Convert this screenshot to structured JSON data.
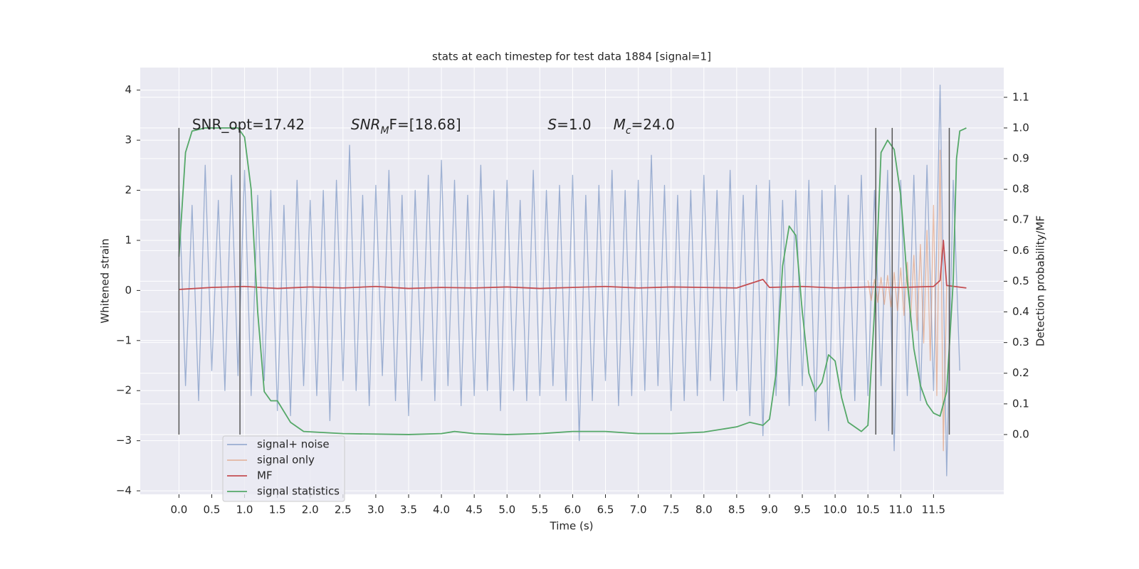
{
  "chart_data": {
    "type": "line",
    "title": "stats at each timestep for test data 1884 [signal=1]",
    "x_label": "Time (s)",
    "y_label": "Whitened strain",
    "y2_label": "Detection probability/MF",
    "xlim": [
      -0.59,
      12.57
    ],
    "ylim": [
      -4.07,
      4.45
    ],
    "y2lim": [
      -0.195,
      1.197
    ],
    "xticks": [
      {
        "value": 0,
        "label": "0.0"
      },
      {
        "value": 0.5,
        "label": "0.5"
      },
      {
        "value": 1,
        "label": "1.0"
      },
      {
        "value": 1.5,
        "label": "1.5"
      },
      {
        "value": 2,
        "label": "2.0"
      },
      {
        "value": 2.5,
        "label": "2.5"
      },
      {
        "value": 3,
        "label": "3.0"
      },
      {
        "value": 3.5,
        "label": "3.5"
      },
      {
        "value": 4,
        "label": "4.0"
      },
      {
        "value": 4.5,
        "label": "4.5"
      },
      {
        "value": 5,
        "label": "5.0"
      },
      {
        "value": 5.5,
        "label": "5.5"
      },
      {
        "value": 6,
        "label": "6.0"
      },
      {
        "value": 6.5,
        "label": "6.5"
      },
      {
        "value": 7,
        "label": "7.0"
      },
      {
        "value": 7.5,
        "label": "7.5"
      },
      {
        "value": 8,
        "label": "8.0"
      },
      {
        "value": 8.5,
        "label": "8.5"
      },
      {
        "value": 9,
        "label": "9.0"
      },
      {
        "value": 9.5,
        "label": "9.5"
      },
      {
        "value": 10,
        "label": "10.0"
      },
      {
        "value": 10.5,
        "label": "10.5"
      },
      {
        "value": 11,
        "label": "11.0"
      },
      {
        "value": 11.5,
        "label": "11.5"
      }
    ],
    "yticks": [
      {
        "value": -4,
        "label": "−4"
      },
      {
        "value": -3,
        "label": "−3"
      },
      {
        "value": -2,
        "label": "−2"
      },
      {
        "value": -1,
        "label": "−1"
      },
      0,
      1,
      2,
      3,
      4
    ],
    "y2ticks": [
      {
        "value": 0,
        "label": "0.0"
      },
      {
        "value": 0.1,
        "label": "0.1"
      },
      {
        "value": 0.2,
        "label": "0.2"
      },
      {
        "value": 0.3,
        "label": "0.3"
      },
      {
        "value": 0.4,
        "label": "0.4"
      },
      {
        "value": 0.5,
        "label": "0.5"
      },
      {
        "value": 0.6,
        "label": "0.6"
      },
      {
        "value": 0.7,
        "label": "0.7"
      },
      {
        "value": 0.8,
        "label": "0.8"
      },
      {
        "value": 0.9,
        "label": "0.9"
      },
      {
        "value": 1.0,
        "label": "1.0"
      },
      {
        "value": 1.1,
        "label": "1.1"
      }
    ],
    "grid": true,
    "legend": "lower left",
    "vlines": [
      0,
      0.93,
      10.62,
      10.87,
      11.74
    ],
    "vline_color": "#555555",
    "annotations": [
      {
        "x": 0.2,
        "y": 3.3,
        "parts": [
          {
            "text": "SNR_opt=17.42"
          }
        ]
      },
      {
        "x": 2.62,
        "y": 3.3,
        "parts": [
          {
            "text": "SNR",
            "italic": true
          },
          {
            "text": "M",
            "italic": true,
            "sub": true
          },
          {
            "text": "F=[18.68]"
          }
        ]
      },
      {
        "x": 5.62,
        "y": 3.3,
        "parts": [
          {
            "text": "S",
            "italic": true
          },
          {
            "text": "=1.0"
          }
        ]
      },
      {
        "x": 6.62,
        "y": 3.3,
        "parts": [
          {
            "text": "M",
            "italic": true
          },
          {
            "text": "c",
            "italic": true,
            "sub": true
          },
          {
            "text": "=24.0"
          }
        ]
      }
    ],
    "series": [
      {
        "name": "signal+ noise",
        "color": "#4c72b0",
        "opacity": 0.5,
        "x": [
          0.0,
          0.1,
          0.2,
          0.3,
          0.4,
          0.5,
          0.6,
          0.7,
          0.8,
          0.9,
          1.0,
          1.1,
          1.2,
          1.3,
          1.4,
          1.5,
          1.6,
          1.7,
          1.8,
          1.9,
          2.0,
          2.1,
          2.2,
          2.3,
          2.4,
          2.5,
          2.6,
          2.7,
          2.8,
          2.9,
          3.0,
          3.1,
          3.2,
          3.3,
          3.4,
          3.5,
          3.6,
          3.7,
          3.8,
          3.9,
          4.0,
          4.1,
          4.2,
          4.3,
          4.4,
          4.5,
          4.6,
          4.7,
          4.8,
          4.9,
          5.0,
          5.1,
          5.2,
          5.3,
          5.4,
          5.5,
          5.6,
          5.7,
          5.8,
          5.9,
          6.0,
          6.1,
          6.2,
          6.3,
          6.4,
          6.5,
          6.6,
          6.7,
          6.8,
          6.9,
          7.0,
          7.1,
          7.2,
          7.3,
          7.4,
          7.5,
          7.6,
          7.7,
          7.8,
          7.9,
          8.0,
          8.1,
          8.2,
          8.3,
          8.4,
          8.5,
          8.6,
          8.7,
          8.8,
          8.9,
          9.0,
          9.1,
          9.2,
          9.3,
          9.4,
          9.5,
          9.6,
          9.7,
          9.8,
          9.9,
          10.0,
          10.1,
          10.2,
          10.3,
          10.4,
          10.5,
          10.6,
          10.7,
          10.8,
          10.9,
          11.0,
          11.1,
          11.2,
          11.3,
          11.4,
          11.5,
          11.6,
          11.7,
          11.8,
          11.9
        ],
        "values": [
          2.1,
          -1.9,
          1.7,
          -2.2,
          2.5,
          -1.6,
          1.8,
          -2.0,
          2.3,
          -1.7,
          2.4,
          -2.1,
          1.9,
          -1.8,
          2.0,
          -2.4,
          1.7,
          -2.5,
          2.2,
          -1.9,
          1.8,
          -2.1,
          2.0,
          -2.6,
          2.2,
          -1.8,
          2.9,
          -2.0,
          1.9,
          -2.3,
          2.1,
          -1.7,
          2.4,
          -2.2,
          1.9,
          -2.5,
          2.0,
          -1.8,
          2.3,
          -2.2,
          2.6,
          -1.9,
          2.2,
          -2.3,
          1.9,
          -2.1,
          2.5,
          -2.0,
          2.0,
          -2.4,
          2.2,
          -2.0,
          1.8,
          -2.2,
          2.4,
          -2.1,
          2.0,
          -1.9,
          2.1,
          -2.2,
          2.3,
          -3.0,
          1.9,
          -2.2,
          2.1,
          -1.8,
          2.4,
          -2.3,
          2.0,
          -2.1,
          2.2,
          -2.0,
          2.7,
          -1.9,
          2.1,
          -2.4,
          1.9,
          -2.2,
          2.0,
          -2.1,
          2.3,
          -1.8,
          2.0,
          -2.2,
          2.4,
          -2.0,
          1.9,
          -2.5,
          2.1,
          -2.9,
          2.2,
          -2.1,
          1.8,
          -2.3,
          2.0,
          -1.9,
          2.2,
          -2.6,
          2.0,
          -2.8,
          2.1,
          -2.0,
          1.9,
          -2.2,
          2.3,
          -2.1,
          2.0,
          -1.9,
          2.4,
          -3.2,
          2.2,
          -2.1,
          2.3,
          -2.2,
          2.5,
          -2.0,
          4.1,
          -3.7,
          2.2,
          -1.6
        ]
      },
      {
        "name": "signal only",
        "color": "#dd8452",
        "opacity": 0.5,
        "x": [
          10.5,
          10.55,
          10.6,
          10.65,
          10.7,
          10.75,
          10.8,
          10.85,
          10.9,
          10.95,
          11.0,
          11.05,
          11.1,
          11.15,
          11.2,
          11.25,
          11.3,
          11.35,
          11.4,
          11.45,
          11.5,
          11.55,
          11.6,
          11.65,
          11.7
        ],
        "values": [
          0.2,
          -0.2,
          0.22,
          -0.24,
          0.26,
          -0.28,
          0.3,
          -0.33,
          0.36,
          -0.4,
          0.45,
          -0.5,
          0.56,
          -0.62,
          0.7,
          -0.8,
          0.92,
          -1.05,
          1.2,
          -1.4,
          1.7,
          -2.1,
          2.8,
          -3.2,
          0.1
        ]
      },
      {
        "name": "MF",
        "color": "#c44e52",
        "opacity": 1,
        "x": [
          0,
          0.5,
          1,
          1.5,
          2,
          2.5,
          3,
          3.5,
          4,
          4.5,
          5,
          5.5,
          6,
          6.5,
          7,
          7.5,
          8,
          8.5,
          8.9,
          9,
          9.5,
          10,
          10.5,
          11,
          11.5,
          11.6,
          11.65,
          11.7,
          12.0
        ],
        "values": [
          0.02,
          0.06,
          0.08,
          0.04,
          0.07,
          0.05,
          0.08,
          0.04,
          0.06,
          0.05,
          0.07,
          0.04,
          0.06,
          0.08,
          0.05,
          0.07,
          0.06,
          0.05,
          0.22,
          0.06,
          0.08,
          0.05,
          0.07,
          0.06,
          0.08,
          0.2,
          1.0,
          0.1,
          0.05
        ]
      },
      {
        "name": "signal statistics",
        "color": "#55a868",
        "opacity": 1,
        "axis": "y2",
        "x": [
          0,
          0.1,
          0.2,
          0.4,
          0.9,
          1.0,
          1.1,
          1.2,
          1.3,
          1.4,
          1.5,
          1.7,
          1.9,
          2.5,
          3.5,
          4.0,
          4.2,
          4.5,
          5,
          5.5,
          6,
          6.5,
          7,
          7.5,
          8,
          8.5,
          8.7,
          8.9,
          9.0,
          9.1,
          9.2,
          9.3,
          9.4,
          9.5,
          9.6,
          9.7,
          9.8,
          9.9,
          10.0,
          10.1,
          10.2,
          10.4,
          10.5,
          10.6,
          10.7,
          10.8,
          10.9,
          11.0,
          11.1,
          11.2,
          11.3,
          11.4,
          11.5,
          11.6,
          11.7,
          11.8,
          11.85,
          11.9,
          12.0
        ],
        "values": [
          0.58,
          0.92,
          0.99,
          1.0,
          1.0,
          0.97,
          0.8,
          0.4,
          0.14,
          0.11,
          0.11,
          0.04,
          0.01,
          0.003,
          0.0,
          0.003,
          0.01,
          0.003,
          0.0,
          0.003,
          0.01,
          0.01,
          0.003,
          0.003,
          0.008,
          0.025,
          0.04,
          0.03,
          0.05,
          0.2,
          0.55,
          0.68,
          0.65,
          0.4,
          0.2,
          0.14,
          0.17,
          0.26,
          0.24,
          0.12,
          0.04,
          0.01,
          0.03,
          0.4,
          0.92,
          0.96,
          0.93,
          0.78,
          0.5,
          0.28,
          0.16,
          0.1,
          0.07,
          0.06,
          0.14,
          0.5,
          0.9,
          0.99,
          1.0
        ]
      }
    ]
  }
}
